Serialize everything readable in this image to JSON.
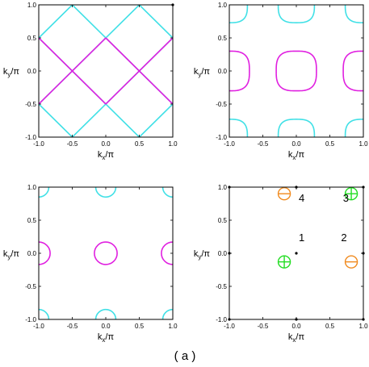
{
  "caption": "( a )",
  "colors": {
    "cyan": "#40e0e6",
    "magenta": "#e020e0",
    "orange": "#f08a1e",
    "green": "#22dd22",
    "frame": "#000000"
  },
  "chart_data": [
    {
      "type": "line",
      "panel": "top-left",
      "xlabel": "kx/π",
      "ylabel": "ky/π",
      "xlim": [
        -1,
        1
      ],
      "ylim": [
        -1,
        1
      ],
      "xticks": [
        "-1.0",
        "-0.5",
        "0.0",
        "0.5",
        "1.0"
      ],
      "yticks": [
        "-1.0",
        "-0.5",
        "0.0",
        "0.5",
        "1.0"
      ],
      "series": [
        {
          "color": "cyan",
          "segments": [
            [
              [
                -1,
                0.5
              ],
              [
                -0.5,
                1
              ]
            ],
            [
              [
                -0.5,
                1
              ],
              [
                0.5,
                0
              ]
            ],
            [
              [
                0.5,
                0
              ],
              [
                1,
                0.5
              ]
            ],
            [
              [
                1,
                0.5
              ],
              [
                0.5,
                1
              ]
            ],
            [
              [
                0.5,
                1
              ],
              [
                -0.5,
                0
              ]
            ],
            [
              [
                -0.5,
                0
              ],
              [
                -1,
                0.5
              ]
            ],
            [
              [
                -1,
                -0.5
              ],
              [
                -0.5,
                -1
              ]
            ],
            [
              [
                -0.5,
                -1
              ],
              [
                0.5,
                0
              ]
            ],
            [
              [
                0.5,
                0
              ],
              [
                1,
                -0.5
              ]
            ],
            [
              [
                1,
                -0.5
              ],
              [
                0.5,
                -1
              ]
            ],
            [
              [
                0.5,
                -1
              ],
              [
                -0.5,
                0
              ]
            ],
            [
              [
                -0.5,
                0
              ],
              [
                -1,
                -0.5
              ]
            ]
          ]
        },
        {
          "color": "magenta",
          "segments": [
            [
              [
                -1,
                0.5
              ],
              [
                0,
                -0.5
              ]
            ],
            [
              [
                0,
                -0.5
              ],
              [
                1,
                0.5
              ]
            ],
            [
              [
                -1,
                -0.5
              ],
              [
                0,
                0.5
              ]
            ],
            [
              [
                0,
                0.5
              ],
              [
                1,
                -0.5
              ]
            ]
          ]
        }
      ],
      "points": [
        [
          1,
          1
        ]
      ]
    },
    {
      "type": "line",
      "panel": "top-right",
      "xlabel": "kx/π",
      "ylabel": "ky/π",
      "xlim": [
        -1,
        1
      ],
      "ylim": [
        -1,
        1
      ],
      "xticks": [
        "-1.0",
        "-0.5",
        "0.0",
        "0.5",
        "1.0"
      ],
      "yticks": [
        "-1.0",
        "-0.5",
        "0.0",
        "0.5",
        "1.0"
      ],
      "series": [
        {
          "color": "magenta",
          "shape": "rounded-square",
          "center": [
            0,
            0
          ],
          "radius": 0.3,
          "power": 3.0
        },
        {
          "color": "magenta",
          "shape": "rounded-square",
          "center": [
            -1,
            0
          ],
          "radius": 0.3,
          "power": 3.0
        },
        {
          "color": "magenta",
          "shape": "rounded-square",
          "center": [
            1,
            0
          ],
          "radius": 0.3,
          "power": 3.0
        },
        {
          "color": "cyan",
          "shape": "rounded-square",
          "center": [
            0,
            1
          ],
          "radius": 0.27,
          "power": 3.0
        },
        {
          "color": "cyan",
          "shape": "rounded-square",
          "center": [
            0,
            -1
          ],
          "radius": 0.27,
          "power": 3.0
        },
        {
          "color": "cyan",
          "shape": "rounded-square",
          "center": [
            -1,
            1
          ],
          "radius": 0.27,
          "power": 3.0
        },
        {
          "color": "cyan",
          "shape": "rounded-square",
          "center": [
            1,
            1
          ],
          "radius": 0.27,
          "power": 3.0
        },
        {
          "color": "cyan",
          "shape": "rounded-square",
          "center": [
            -1,
            -1
          ],
          "radius": 0.27,
          "power": 3.0
        },
        {
          "color": "cyan",
          "shape": "rounded-square",
          "center": [
            1,
            -1
          ],
          "radius": 0.27,
          "power": 3.0
        }
      ]
    },
    {
      "type": "line",
      "panel": "bottom-left",
      "xlabel": "kx/π",
      "ylabel": "ky/π",
      "xlim": [
        -1,
        1
      ],
      "ylim": [
        -1,
        1
      ],
      "xticks": [
        "-1.0",
        "-0.5",
        "0.0",
        "0.5",
        "1.0"
      ],
      "yticks": [
        "-1.0",
        "-0.5",
        "0.0",
        "0.5",
        "1.0"
      ],
      "series": [
        {
          "color": "magenta",
          "shape": "circle",
          "center": [
            0,
            0
          ],
          "radius": 0.17
        },
        {
          "color": "magenta",
          "shape": "circle",
          "center": [
            -1,
            0
          ],
          "radius": 0.17
        },
        {
          "color": "magenta",
          "shape": "circle",
          "center": [
            1,
            0
          ],
          "radius": 0.17
        },
        {
          "color": "cyan",
          "shape": "circle",
          "center": [
            0,
            1
          ],
          "radius": 0.15
        },
        {
          "color": "cyan",
          "shape": "circle",
          "center": [
            0,
            -1
          ],
          "radius": 0.15
        },
        {
          "color": "cyan",
          "shape": "circle",
          "center": [
            -1,
            1
          ],
          "radius": 0.15
        },
        {
          "color": "cyan",
          "shape": "circle",
          "center": [
            1,
            1
          ],
          "radius": 0.15
        },
        {
          "color": "cyan",
          "shape": "circle",
          "center": [
            -1,
            -1
          ],
          "radius": 0.15
        },
        {
          "color": "cyan",
          "shape": "circle",
          "center": [
            1,
            -1
          ],
          "radius": 0.15
        }
      ]
    },
    {
      "type": "scatter",
      "panel": "bottom-right",
      "xlabel": "kx/π",
      "ylabel": "ky/π",
      "xlim": [
        -1,
        1
      ],
      "ylim": [
        -1,
        1
      ],
      "xticks": [
        "-1.0",
        "-0.5",
        "0.0",
        "0.5",
        "1.0"
      ],
      "yticks": [
        "-1.0",
        "-0.5",
        "0.0",
        "0.5",
        "1.0"
      ],
      "dots": [
        [
          -1,
          1
        ],
        [
          0,
          1
        ],
        [
          1,
          1
        ],
        [
          -1,
          0
        ],
        [
          0,
          0
        ],
        [
          1,
          0
        ],
        [
          -1,
          -1
        ],
        [
          0,
          -1
        ],
        [
          1,
          -1
        ]
      ],
      "markers": [
        {
          "sign": "minus",
          "color": "orange",
          "x": -0.18,
          "y": 0.9
        },
        {
          "sign": "plus",
          "color": "green",
          "x": 0.82,
          "y": 0.9
        },
        {
          "sign": "plus",
          "color": "green",
          "x": -0.18,
          "y": -0.13
        },
        {
          "sign": "minus",
          "color": "orange",
          "x": 0.82,
          "y": -0.13
        }
      ],
      "annotations": [
        {
          "text": "1",
          "x": 0.08,
          "y": 0.18
        },
        {
          "text": "2",
          "x": 0.71,
          "y": 0.18
        },
        {
          "text": "3",
          "x": 0.74,
          "y": 0.78
        },
        {
          "text": "4",
          "x": 0.08,
          "y": 0.78
        }
      ]
    }
  ]
}
